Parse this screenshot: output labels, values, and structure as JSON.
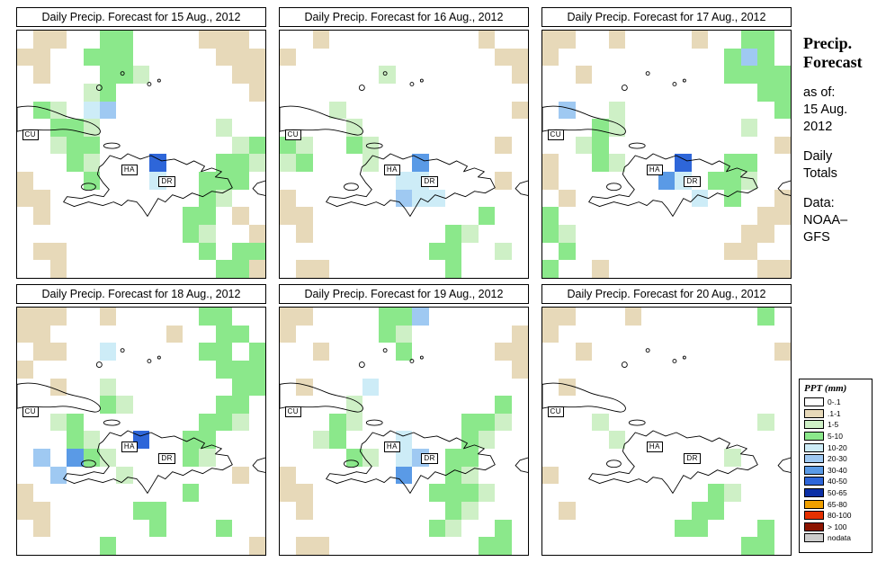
{
  "sidebar": {
    "title": [
      "Precip.",
      "Forecast"
    ],
    "as_of": [
      "as of:",
      "15 Aug.",
      "2012"
    ],
    "totals": [
      "Daily",
      "Totals"
    ],
    "source": [
      "Data:",
      "NOAA–",
      "GFS"
    ]
  },
  "chart_data": {
    "type": "heatmap",
    "unit": "mm",
    "description": "Six-panel gridded daily precipitation forecast maps over Cuba, Haiti and the Dominican Republic",
    "color_codes": {
      "W": "#FFFFFF",
      "T": "#E7D9B9",
      "g": "#CEF0C6",
      "G": "#8BE88B",
      "c": "#CDECF7",
      "b": "#9FC9F2",
      "B": "#5A9AE6",
      "D": "#2E66D9"
    },
    "code_bins": {
      "W": "0-.1",
      "T": ".1-1",
      "g": "1-5",
      "G": "5-10",
      "c": "10-20",
      "b": "20-30",
      "B": "30-40",
      "D": "40-50"
    },
    "map_labels": [
      {
        "text": "CU"
      },
      {
        "text": "HA"
      },
      {
        "text": "DR"
      }
    ],
    "panels": [
      {
        "title": "Daily Precip. Forecast for 15 Aug., 2012",
        "grid": [
          "WTTWWGGWWWWTTTW",
          "TTWWGGGWWWWWTTT",
          "WTWWWGGgWWWWWTT",
          "WWWWgGWWWWWWWWT",
          "WGgWcbWWWWWWWWW",
          "WWGGgWWWWWWWgWW",
          "WWgGGWWWWWWWWgG",
          "WWWGgWWWDWWWGGg",
          "TWWWGWWWcWWGGGW",
          "TTWWWWWWWWWGgWW",
          "WTWWWWWWWWGGWTW",
          "WWWWWWWWWWGgWWT",
          "WTTWWWWWWWWGWGG",
          "WWTWWWWWWWWWGGT"
        ]
      },
      {
        "title": "Daily Precip. Forecast for 16 Aug., 2012",
        "grid": [
          "WWTWWWWWWWWWTWW",
          "TWWWWWWWWWWWWTT",
          "WWWWWWgWWWWWWWT",
          "WWWWWWWWWWWWWWW",
          "WWWgWWWWWWWWWWT",
          "WWWWgWWWWWWWWWW",
          "GgWWGgWWWWWWWTW",
          "gGWWWgWWBWWWWWW",
          "WWWWWWWccWWWWTW",
          "TWWWWWWbccWWWWW",
          "TTWWWWWWWWWWGWW",
          "WTWWWWWWWWGgWWW",
          "WWWWWWWWWGGWWgW",
          "WTTWWWWWWWGWWWW"
        ]
      },
      {
        "title": "Daily Precip. Forecast for 17 Aug., 2012",
        "grid": [
          "TTWWTWWWWTWWGGW",
          "TWWWWWWWWWWGbGW",
          "WWTWWWWWWWWGGGG",
          "WWWWWWWWWWWWWGG",
          "WbWWgWWWWWWWWWG",
          "WWWGgWWWWWWWgWW",
          "WWgGWWWWWWWWWWT",
          "TWWGgWWWDWWGGWW",
          "TWWWWWWBcWGGgWW",
          "WTWWWWWWWcWGWWT",
          "GWWWWWWWWWWWWTT",
          "GgWWWWWWWWWWTTW",
          "WGWWWWWWWWWTTWW",
          "GWWTWWWWWWWWWTT"
        ]
      },
      {
        "title": "Daily Precip. Forecast for 18 Aug., 2012",
        "grid": [
          "TTTWWTWWWWWGGWW",
          "TTWWWWWWWTWWGGW",
          "WTTWWcWWWWWGGWG",
          "TWWWWWWWWWWWGGG",
          "WWTWWgWWWWWWWGG",
          "WWWWWGgWWWWWGGW",
          "WWgGWWWWWWWGGgW",
          "WWWGgWWDWWGGWWW",
          "WbWBGgWWWWGgWWW",
          "WWbWWWgWWWWWWTW",
          "TWWWWWWWWWGWWWW",
          "TTWWWWWGGWWWWWW",
          "WTWWWWWWGWWWGWW",
          "WWWWWGWWWWWWWWT"
        ]
      },
      {
        "title": "Daily Precip. Forecast for 19 Aug., 2012",
        "grid": [
          "TTWWWWGGbWWWWWW",
          "TWWWWWGgWWWWWWT",
          "WWTWWWWGWWWWWTT",
          "WWWWWWWWWWWWWWT",
          "WTWWWcWWWWWWWWW",
          "WWWWgWWWWWWWWGW",
          "WWWGgWWWWWWGGgW",
          "WWgGWWWcWWWGgWW",
          "WWWWGgWcbWGGWWW",
          "TWWWWWWBWWGgWWW",
          "TTWWWWWWWGGGgWW",
          "WTWWWWWWWWGgWWW",
          "WWWWWWWWWGgWWGW",
          "WTTWWWWWWWWWGGW"
        ]
      },
      {
        "title": "Daily Precip. Forecast for 20 Aug., 2012",
        "grid": [
          "TTWWWTWWWWWWWGW",
          "TWWWWWWWWWWWWWW",
          "WWTWWWWWWWWWWWT",
          "WWWWWWWWWWWWWWW",
          "WTWWWWWWWWWWWWW",
          "WWWWWWWWWWWWWWW",
          "WWWgWWWWWWWWWgW",
          "WWWWgWWWWWWWWWW",
          "WWWWWWWWWWWgWWW",
          "TWWWWWWWWWWWWWW",
          "WWWWWWWWWWGgWWW",
          "WTWWWWWWWGGWWWW",
          "WWWWWWWWGGWWWGW",
          "WWWWWWWWWWWWGGW"
        ]
      }
    ],
    "legend": {
      "title": "PPT (mm)",
      "items": [
        {
          "label": "0-.1",
          "color": "#FFFFFF"
        },
        {
          "label": ".1-1",
          "color": "#E7D9B9"
        },
        {
          "label": "1-5",
          "color": "#CEF0C6"
        },
        {
          "label": "5-10",
          "color": "#8BE88B"
        },
        {
          "label": "10-20",
          "color": "#CDECF7"
        },
        {
          "label": "20-30",
          "color": "#9FC9F2"
        },
        {
          "label": "30-40",
          "color": "#5A9AE6"
        },
        {
          "label": "40-50",
          "color": "#2E66D9"
        },
        {
          "label": "50-65",
          "color": "#0B2FA6"
        },
        {
          "label": "65-80",
          "color": "#F0A000"
        },
        {
          "label": "80-100",
          "color": "#E53000"
        },
        {
          "label": "> 100",
          "color": "#8C1400"
        },
        {
          "label": "nodata",
          "color": "#CCCCCC"
        }
      ]
    }
  }
}
